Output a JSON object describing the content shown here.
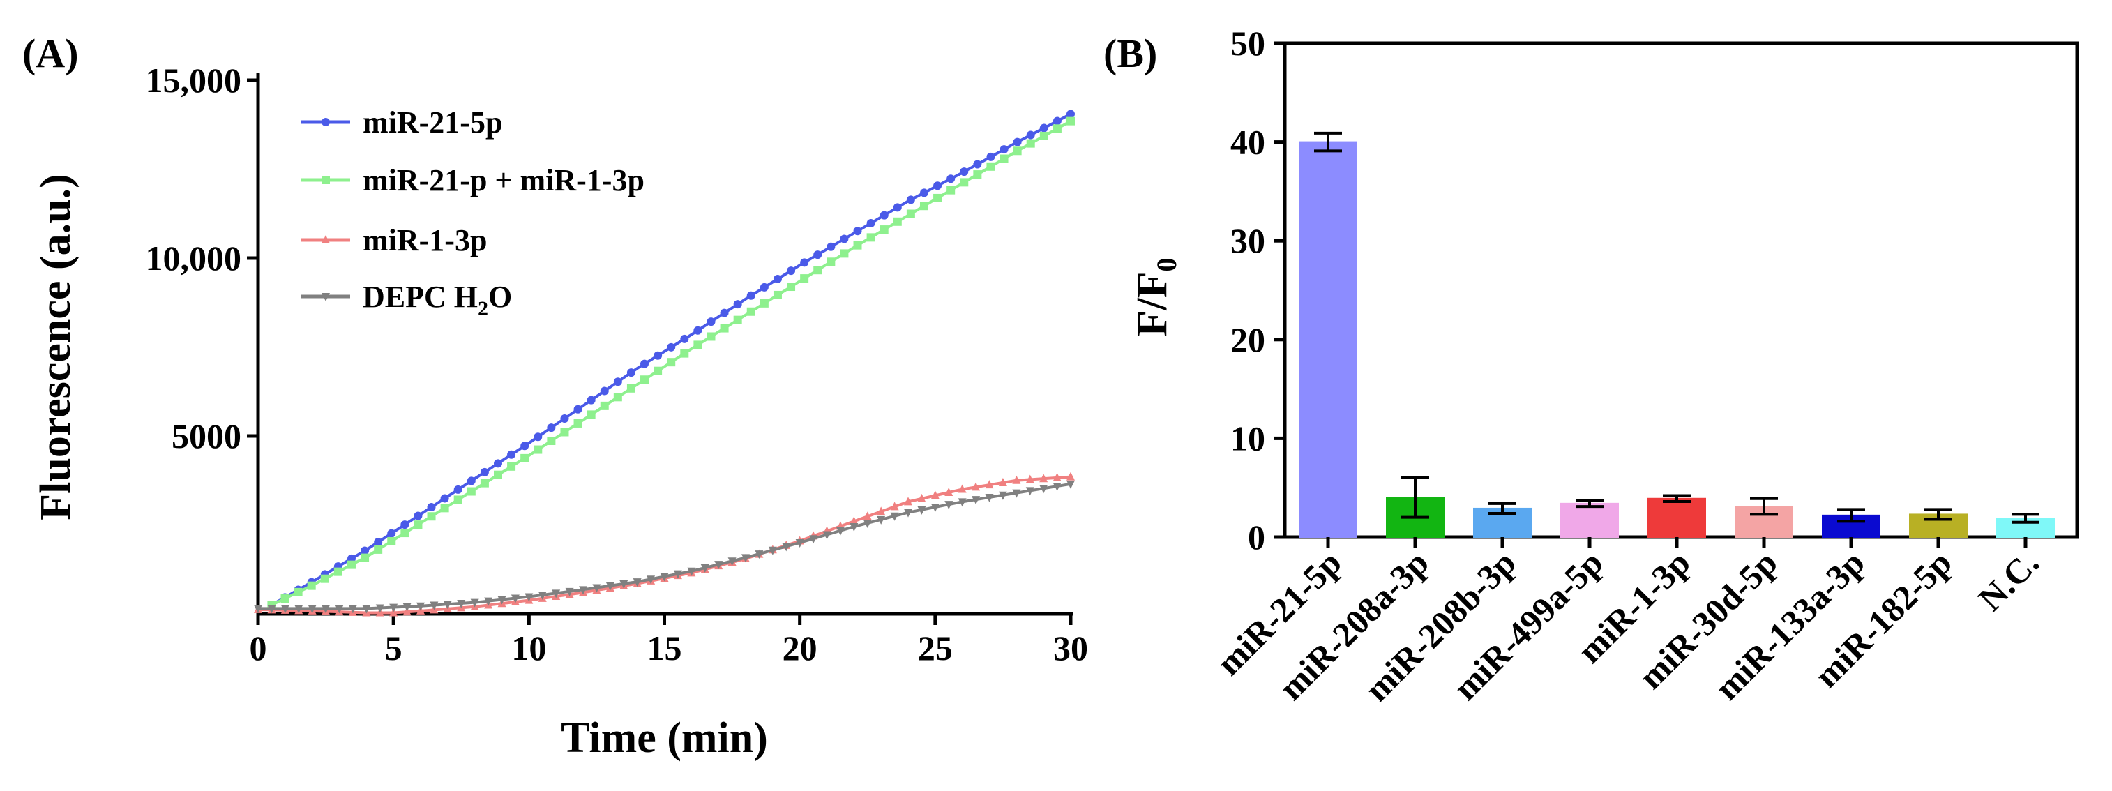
{
  "chart_data": [
    {
      "panel_label": "(A)",
      "type": "line",
      "xlabel": "Time (min)",
      "ylabel": "Fluorescence (a.u.)",
      "xlim": [
        0,
        30
      ],
      "ylim": [
        0,
        15000
      ],
      "x_ticks": [
        0,
        5,
        10,
        15,
        20,
        25,
        30
      ],
      "x_tick_labels": [
        "0",
        "5",
        "10",
        "15",
        "20",
        "25",
        "30"
      ],
      "y_ticks": [
        5000,
        10000,
        15000
      ],
      "y_tick_labels": [
        "5000",
        "10,000",
        "15,000"
      ],
      "legend_position": "top-left",
      "legend_labels": {
        "s1": "miR-21-5p",
        "s2": "miR-21-p + miR-1-3p",
        "s3": "miR-1-3p",
        "s4_main": "DEPC H",
        "s4_sub": "2",
        "s4_tail": "O"
      },
      "series": [
        {
          "name": "miR-21-5p",
          "color": "#4a5ae8",
          "marker": "circle",
          "points": [
            [
              0.5,
              250
            ],
            [
              2,
              900
            ],
            [
              4,
              1800
            ],
            [
              6,
              2800
            ],
            [
              8,
              3800
            ],
            [
              10,
              4800
            ],
            [
              12,
              5850
            ],
            [
              14,
              6900
            ],
            [
              16,
              7850
            ],
            [
              18,
              8850
            ],
            [
              20,
              9800
            ],
            [
              22,
              10700
            ],
            [
              24,
              11600
            ],
            [
              26,
              12400
            ],
            [
              28,
              13250
            ],
            [
              30,
              14050
            ]
          ]
        },
        {
          "name": "miR-21-p + miR-1-3p",
          "color": "#8ef08e",
          "marker": "square",
          "points": [
            [
              0.5,
              250
            ],
            [
              2,
              800
            ],
            [
              4,
              1600
            ],
            [
              6,
              2550
            ],
            [
              8,
              3500
            ],
            [
              10,
              4450
            ],
            [
              12,
              5450
            ],
            [
              14,
              6450
            ],
            [
              16,
              7450
            ],
            [
              18,
              8400
            ],
            [
              20,
              9350
            ],
            [
              22,
              10300
            ],
            [
              24,
              11200
            ],
            [
              26,
              12100
            ],
            [
              28,
              13000
            ],
            [
              30,
              13850
            ]
          ]
        },
        {
          "name": "miR-1-3p",
          "color": "#f08080",
          "marker": "triangle-up",
          "points": [
            [
              0,
              120
            ],
            [
              2,
              80
            ],
            [
              4,
              30
            ],
            [
              5,
              30
            ],
            [
              6,
              80
            ],
            [
              8,
              200
            ],
            [
              10,
              380
            ],
            [
              12,
              600
            ],
            [
              14,
              850
            ],
            [
              16,
              1150
            ],
            [
              18,
              1550
            ],
            [
              20,
              2050
            ],
            [
              22,
              2600
            ],
            [
              24,
              3150
            ],
            [
              26,
              3500
            ],
            [
              28,
              3750
            ],
            [
              30,
              3850
            ]
          ]
        },
        {
          "name": "DEPC H2O",
          "color": "#808080",
          "marker": "triangle-down",
          "points": [
            [
              0,
              150
            ],
            [
              2,
              150
            ],
            [
              4,
              150
            ],
            [
              6,
              220
            ],
            [
              8,
              320
            ],
            [
              10,
              480
            ],
            [
              12,
              680
            ],
            [
              14,
              900
            ],
            [
              16,
              1200
            ],
            [
              18,
              1580
            ],
            [
              20,
              2000
            ],
            [
              22,
              2450
            ],
            [
              24,
              2850
            ],
            [
              26,
              3150
            ],
            [
              28,
              3400
            ],
            [
              30,
              3650
            ]
          ]
        }
      ]
    },
    {
      "panel_label": "(B)",
      "type": "bar",
      "ylabel_main": "F/F",
      "ylabel_sub": "0",
      "ylim": [
        0,
        50
      ],
      "y_ticks": [
        0,
        10,
        20,
        30,
        40,
        50
      ],
      "y_tick_labels": [
        "0",
        "10",
        "20",
        "30",
        "40",
        "50"
      ],
      "categories": [
        "miR-21-5p",
        "miR-208a-3p",
        "miR-208b-3p",
        "miR-499a-5p",
        "miR-1-3p",
        "miR-30d-5p",
        "miR-133a-3p",
        "miR-182-5p",
        "N.C."
      ],
      "values": [
        40,
        4,
        2.9,
        3.4,
        3.9,
        3.1,
        2.2,
        2.3,
        1.9
      ],
      "errors": [
        0.9,
        2,
        0.5,
        0.3,
        0.3,
        0.8,
        0.6,
        0.5,
        0.4
      ],
      "colors": [
        "#8c8cff",
        "#12b512",
        "#5aa8f0",
        "#f0a8e8",
        "#ee3a3a",
        "#f4a4a4",
        "#0a0ad0",
        "#b8b024",
        "#7ff8f8"
      ]
    }
  ]
}
